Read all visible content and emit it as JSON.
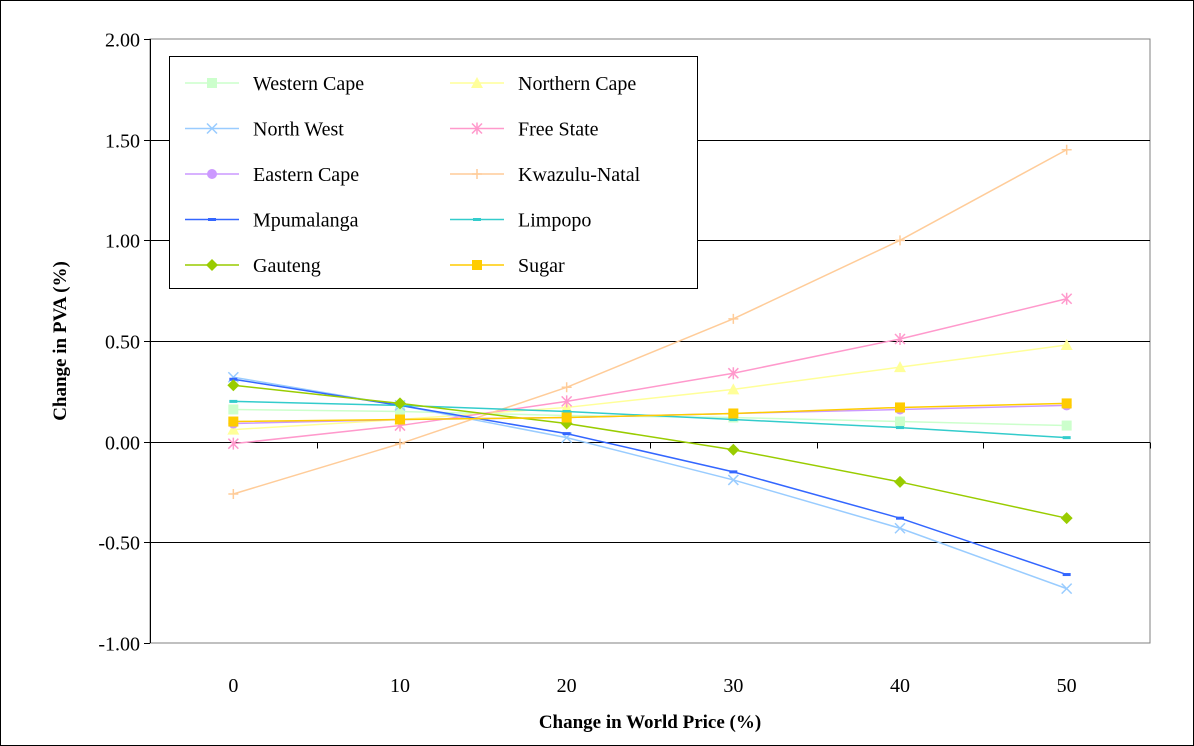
{
  "chart_data": {
    "type": "line",
    "xlabel": "Change in World Price (%)",
    "ylabel": "Change in PVA (%)",
    "x": [
      0,
      10,
      20,
      30,
      40,
      50
    ],
    "x_tick_labels": [
      "0",
      "10",
      "20",
      "30",
      "40",
      "50"
    ],
    "ylim": [
      -1.0,
      2.0
    ],
    "y_ticks": [
      -1.0,
      -0.5,
      0.0,
      0.5,
      1.0,
      1.5,
      2.0
    ],
    "y_tick_labels": [
      "-1.00",
      "-0.50",
      "0.00",
      "0.50",
      "1.00",
      "1.50",
      "2.00"
    ],
    "grid": "horizontal",
    "legend_position": "top-left",
    "series": [
      {
        "name": "Western Cape",
        "color": "#ccffcc",
        "marker": "square",
        "values": [
          0.16,
          0.15,
          0.13,
          0.12,
          0.1,
          0.08
        ]
      },
      {
        "name": "Northern Cape",
        "color": "#ffff99",
        "marker": "triangle",
        "values": [
          0.06,
          0.11,
          0.17,
          0.26,
          0.37,
          0.48
        ]
      },
      {
        "name": "North West",
        "color": "#99ccff",
        "marker": "x",
        "values": [
          0.32,
          0.18,
          0.02,
          -0.19,
          -0.43,
          -0.73
        ]
      },
      {
        "name": "Free State",
        "color": "#ff99cc",
        "marker": "star",
        "values": [
          -0.01,
          0.08,
          0.2,
          0.34,
          0.51,
          0.71
        ]
      },
      {
        "name": "Eastern Cape",
        "color": "#cc99ff",
        "marker": "circle",
        "values": [
          0.09,
          0.11,
          0.12,
          0.14,
          0.16,
          0.18
        ]
      },
      {
        "name": "Kwazulu-Natal",
        "color": "#ffcc99",
        "marker": "plus",
        "values": [
          -0.26,
          -0.01,
          0.27,
          0.61,
          1.0,
          1.45
        ]
      },
      {
        "name": "Mpumalanga",
        "color": "#3366ff",
        "marker": "dash",
        "values": [
          0.31,
          0.18,
          0.04,
          -0.15,
          -0.38,
          -0.66
        ]
      },
      {
        "name": "Limpopo",
        "color": "#33cccc",
        "marker": "dash",
        "values": [
          0.2,
          0.18,
          0.15,
          0.11,
          0.07,
          0.02
        ]
      },
      {
        "name": "Gauteng",
        "color": "#99cc00",
        "marker": "diamond",
        "values": [
          0.28,
          0.19,
          0.09,
          -0.04,
          -0.2,
          -0.38
        ]
      },
      {
        "name": "Sugar",
        "color": "#ffcc00",
        "marker": "square",
        "values": [
          0.1,
          0.11,
          0.12,
          0.14,
          0.17,
          0.19
        ]
      }
    ]
  }
}
